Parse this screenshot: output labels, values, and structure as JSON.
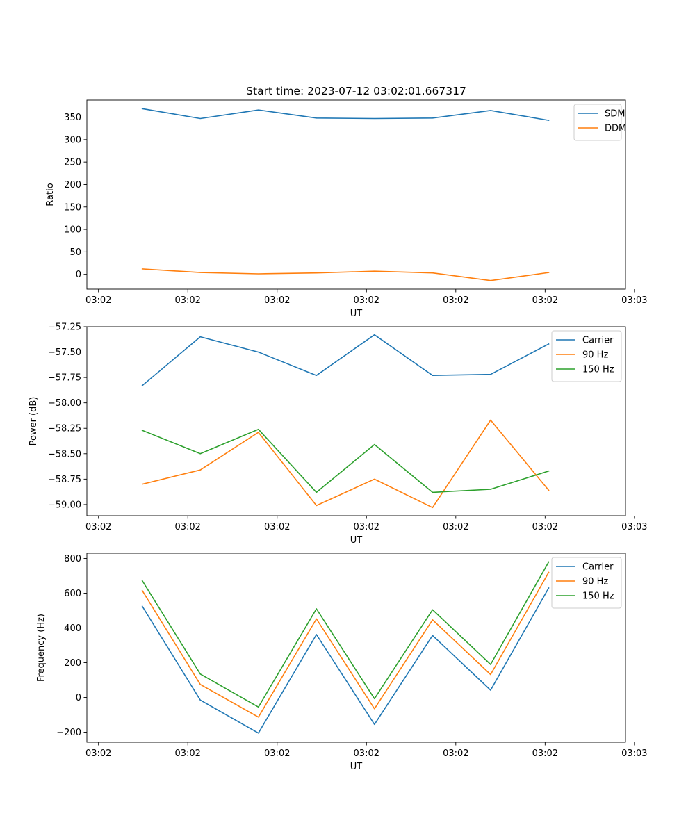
{
  "chart_data": [
    {
      "type": "line",
      "title": "Start time: 2023-07-12 03:02:01.667317",
      "xlabel": "UT",
      "ylabel": "Ratio",
      "x_ticks": [
        "03:02",
        "03:02",
        "03:02",
        "03:02",
        "03:02",
        "03:02",
        "03:03"
      ],
      "x": [
        0.49,
        1.14,
        1.79,
        2.44,
        3.09,
        3.74,
        4.39,
        5.04
      ],
      "xlim": [
        -0.13,
        5.9
      ],
      "ylim": [
        -33,
        388
      ],
      "yticks": [
        0,
        50,
        100,
        150,
        200,
        250,
        300,
        350
      ],
      "ytick_labels": [
        "0",
        "50",
        "100",
        "150",
        "200",
        "250",
        "300",
        "350"
      ],
      "legend": "top-right",
      "series": [
        {
          "name": "SDM",
          "color": "#1f77b4",
          "values": [
            369,
            347,
            366,
            348,
            347,
            348,
            365,
            343
          ]
        },
        {
          "name": "DDM",
          "color": "#ff7f0e",
          "values": [
            12,
            4,
            1,
            3,
            7,
            3,
            -14,
            4
          ]
        }
      ]
    },
    {
      "type": "line",
      "title": "",
      "xlabel": "UT",
      "ylabel": "Power (dB)",
      "x_ticks": [
        "03:02",
        "03:02",
        "03:02",
        "03:02",
        "03:02",
        "03:02",
        "03:03"
      ],
      "x": [
        0.49,
        1.14,
        1.79,
        2.44,
        3.09,
        3.74,
        4.39,
        5.04
      ],
      "xlim": [
        -0.13,
        5.9
      ],
      "ylim": [
        -59.11,
        -57.25
      ],
      "yticks": [
        -59.0,
        -58.75,
        -58.5,
        -58.25,
        -58.0,
        -57.75,
        -57.5,
        -57.25
      ],
      "ytick_labels": [
        "−59.00",
        "−58.75",
        "−58.50",
        "−58.25",
        "−58.00",
        "−57.75",
        "−57.50",
        "−57.25"
      ],
      "legend": "top-right",
      "series": [
        {
          "name": "Carrier",
          "color": "#1f77b4",
          "values": [
            -57.83,
            -57.35,
            -57.5,
            -57.73,
            -57.33,
            -57.73,
            -57.72,
            -57.42
          ]
        },
        {
          "name": "90 Hz",
          "color": "#ff7f0e",
          "values": [
            -58.8,
            -58.66,
            -58.29,
            -59.01,
            -58.75,
            -59.03,
            -58.17,
            -58.86
          ]
        },
        {
          "name": "150 Hz",
          "color": "#2ca02c",
          "values": [
            -58.27,
            -58.5,
            -58.26,
            -58.88,
            -58.41,
            -58.88,
            -58.85,
            -58.67
          ]
        }
      ]
    },
    {
      "type": "line",
      "title": "",
      "xlabel": "UT",
      "ylabel": "Frequency (Hz)",
      "x_ticks": [
        "03:02",
        "03:02",
        "03:02",
        "03:02",
        "03:02",
        "03:02",
        "03:03"
      ],
      "x": [
        0.49,
        1.14,
        1.79,
        2.44,
        3.09,
        3.74,
        4.39,
        5.04
      ],
      "xlim": [
        -0.13,
        5.9
      ],
      "ylim": [
        -258,
        830
      ],
      "yticks": [
        -200,
        0,
        200,
        400,
        600,
        800
      ],
      "ytick_labels": [
        "−200",
        "0",
        "200",
        "400",
        "600",
        "800"
      ],
      "legend": "top-right",
      "series": [
        {
          "name": "Carrier",
          "color": "#1f77b4",
          "values": [
            525,
            -15,
            -205,
            362,
            -155,
            357,
            42,
            630
          ]
        },
        {
          "name": "90 Hz",
          "color": "#ff7f0e",
          "values": [
            615,
            75,
            -113,
            452,
            -65,
            447,
            132,
            720
          ]
        },
        {
          "name": "150 Hz",
          "color": "#2ca02c",
          "values": [
            672,
            135,
            -55,
            510,
            -7,
            505,
            190,
            780
          ]
        }
      ]
    }
  ]
}
